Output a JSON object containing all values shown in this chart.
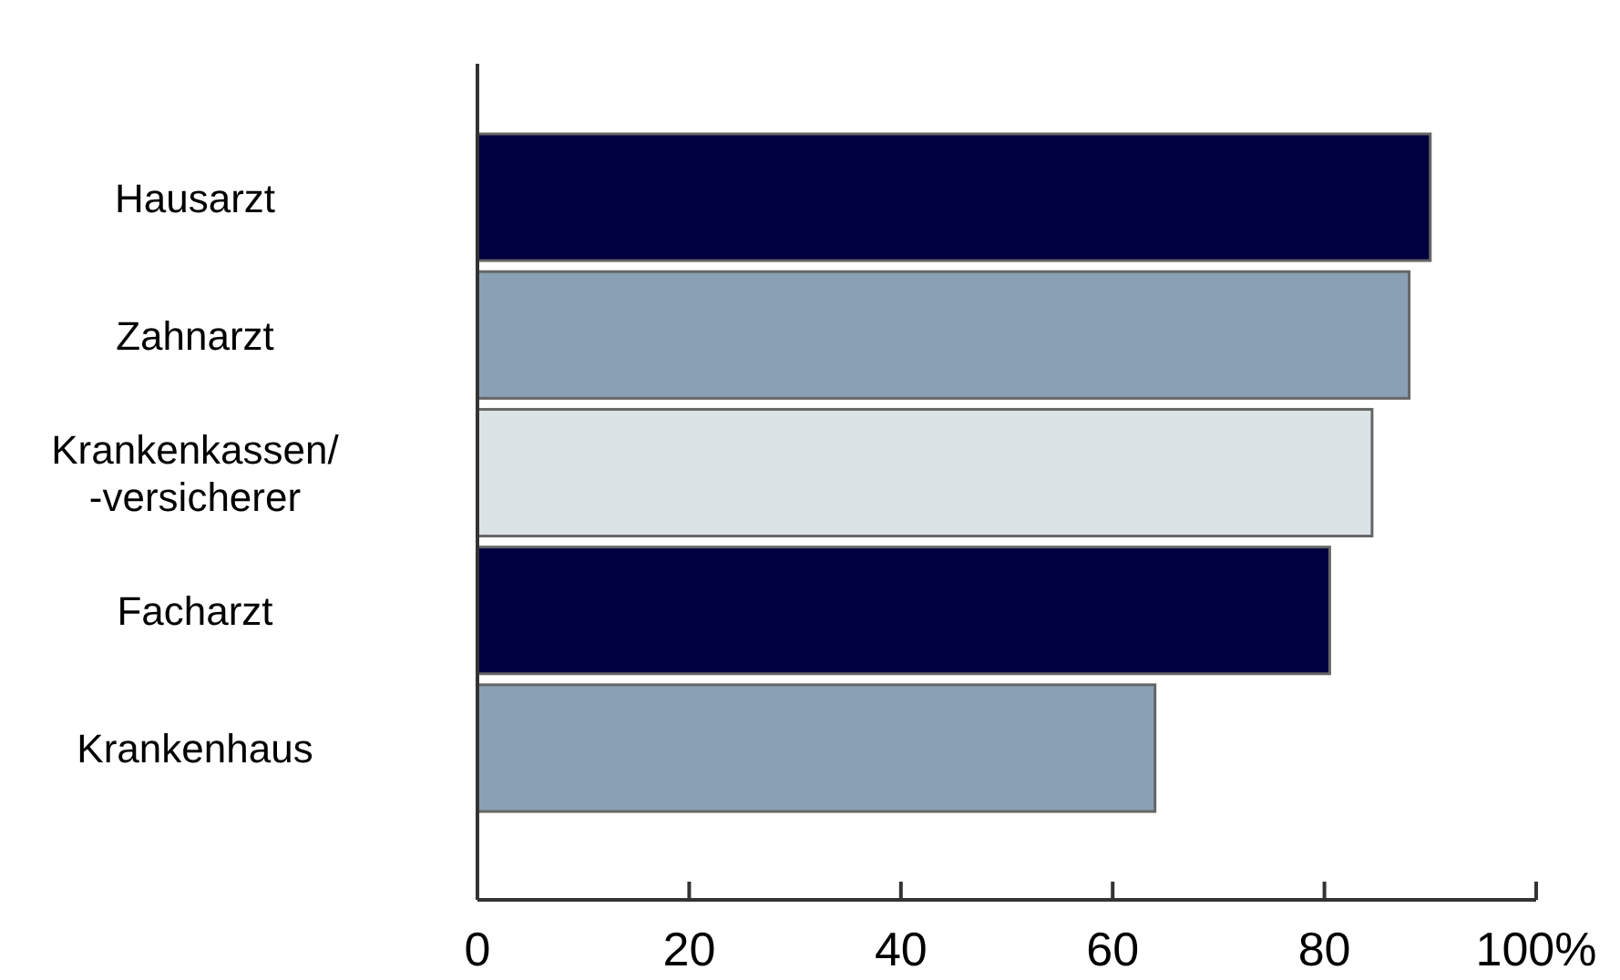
{
  "chart_data": {
    "type": "bar",
    "orientation": "horizontal",
    "categories": [
      "Hausarzt",
      "Zahnarzt",
      "Krankenkassen/\n-versicherer",
      "Facharzt",
      "Krankenhaus"
    ],
    "values": [
      90,
      88,
      84.5,
      80.5,
      64
    ],
    "colors": [
      "#000040",
      "#8aa0b4",
      "#dbe3e6",
      "#000040",
      "#8aa0b4"
    ],
    "xlim": [
      0,
      100
    ],
    "xticks": [
      0,
      20,
      40,
      60,
      80,
      {
        "value": 100,
        "label": "100%"
      }
    ],
    "grid": false
  }
}
